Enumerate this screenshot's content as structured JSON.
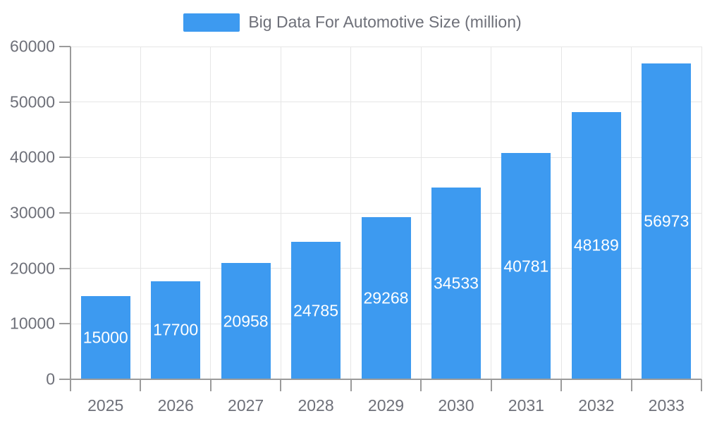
{
  "chart_data": {
    "type": "bar",
    "title": "Big Data For Automotive Size (million)",
    "series_name": "Big Data For Automotive Size (million)",
    "categories": [
      "2025",
      "2026",
      "2027",
      "2028",
      "2029",
      "2030",
      "2031",
      "2032",
      "2033"
    ],
    "values": [
      15000,
      17700,
      20958,
      24785,
      29268,
      34533,
      40781,
      48189,
      56973
    ],
    "xlabel": "",
    "ylabel": "",
    "ylim": [
      0,
      60000
    ],
    "ytick_interval": 10000,
    "yticks": [
      0,
      10000,
      20000,
      30000,
      40000,
      50000,
      60000
    ],
    "grid": true,
    "legend_position": "top-center",
    "value_labels": "inside-center",
    "colors": {
      "bar": "#3D9AF0",
      "bar_label_text": "#ffffff",
      "axis_text": "#6E7079",
      "axis_line": "#9B9B9B",
      "gridline": "#E6E6E6",
      "background": "#ffffff"
    }
  }
}
